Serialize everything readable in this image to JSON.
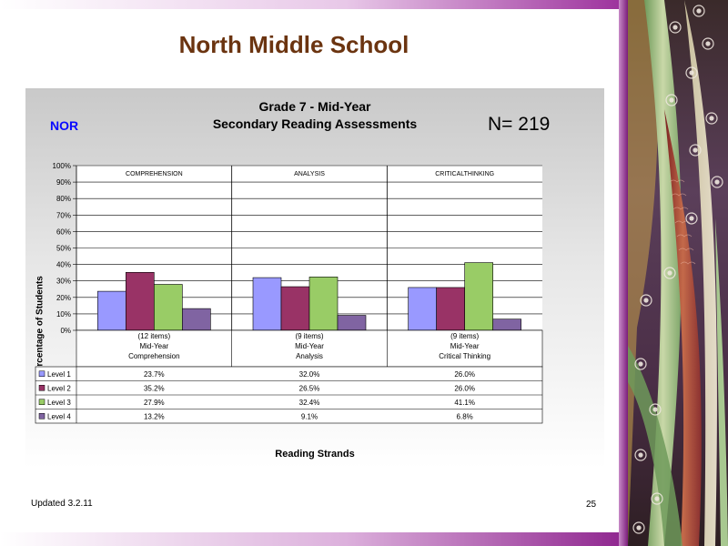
{
  "slide": {
    "title": "North Middle School",
    "updated": "Updated  3.2.11",
    "page_number": "25"
  },
  "chart_data": {
    "type": "bar",
    "title": "Grade 7 - Mid-Year",
    "subtitle": "Secondary Reading Assessments",
    "school_code": "NOR",
    "n_label": "N=  219",
    "ylabel": "Percentage of Students",
    "xlabel": "Reading Strands",
    "ylim": [
      0,
      100
    ],
    "y_ticks": [
      "0%",
      "10%",
      "20%",
      "30%",
      "40%",
      "50%",
      "60%",
      "70%",
      "80%",
      "90%",
      "100%"
    ],
    "grid": true,
    "strand_labels": [
      "COMPREHENSION",
      "ANALYSIS",
      "CRITICALTHINKING"
    ],
    "categories": [
      [
        "(12 items)",
        "Mid-Year",
        "Comprehension"
      ],
      [
        "(9 items)",
        "Mid-Year",
        "Analysis"
      ],
      [
        "(9 items)",
        "Mid-Year",
        "Critical Thinking"
      ]
    ],
    "series": [
      {
        "name": "Level 1",
        "color": "#9999ff",
        "values": [
          23.7,
          32.0,
          26.0
        ],
        "labels": [
          "23.7%",
          "32.0%",
          "26.0%"
        ]
      },
      {
        "name": "Level 2",
        "color": "#993366",
        "values": [
          35.2,
          26.5,
          26.0
        ],
        "labels": [
          "35.2%",
          "26.5%",
          "26.0%"
        ]
      },
      {
        "name": "Level 3",
        "color": "#99cc66",
        "values": [
          27.9,
          32.4,
          41.1
        ],
        "labels": [
          "27.9%",
          "32.4%",
          "41.1%"
        ]
      },
      {
        "name": "Level 4",
        "color": "#8064a2",
        "values": [
          13.2,
          9.1,
          6.8
        ],
        "labels": [
          "13.2%",
          "9.1%",
          "6.8%"
        ]
      }
    ]
  }
}
